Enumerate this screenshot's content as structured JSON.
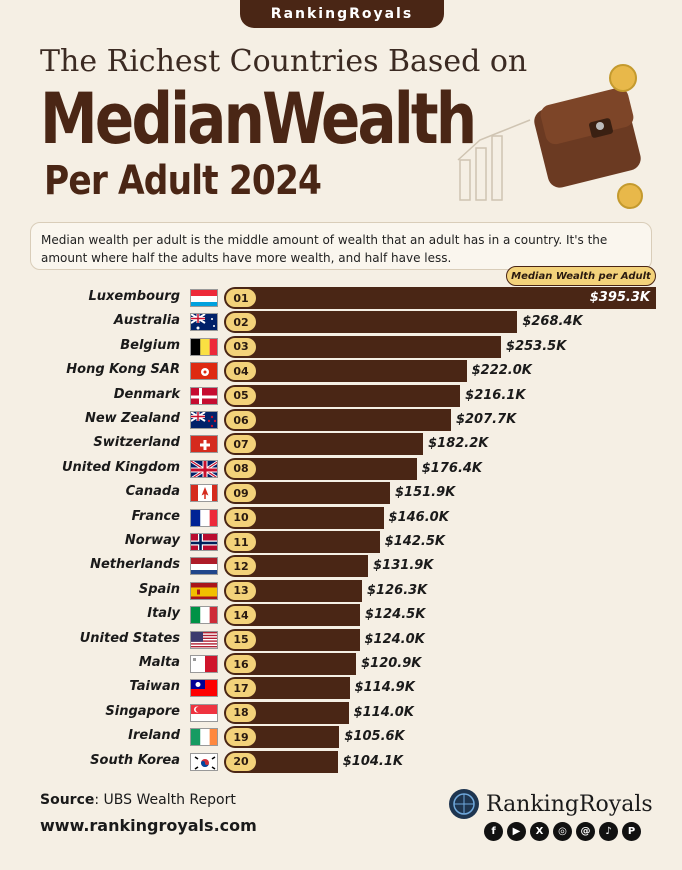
{
  "brand_tab": "RankingRoyals",
  "title_line1": "The Richest Countries Based on",
  "title_line2": "MedianWealth",
  "title_line3": "Per Adult 2024",
  "description": "Median wealth per adult is the middle amount of wealth that an adult has in a country. It's the amount where half the adults have more wealth, and half have less.",
  "legend_label": "Median Wealth per Adult",
  "chart_data": {
    "type": "bar",
    "orientation": "horizontal",
    "title": "The Richest Countries Based on MedianWealth Per Adult 2024",
    "series_name": "Median Wealth per Adult",
    "categories": [
      "Luxembourg",
      "Australia",
      "Belgium",
      "Hong Kong SAR",
      "Denmark",
      "New Zealand",
      "Switzerland",
      "United Kingdom",
      "Canada",
      "France",
      "Norway",
      "Netherlands",
      "Spain",
      "Italy",
      "United States",
      "Malta",
      "Taiwan",
      "Singapore",
      "Ireland",
      "South Korea"
    ],
    "ranks": [
      "01",
      "02",
      "03",
      "04",
      "05",
      "06",
      "07",
      "08",
      "09",
      "10",
      "11",
      "12",
      "13",
      "14",
      "15",
      "16",
      "17",
      "18",
      "19",
      "20"
    ],
    "values": [
      395.3,
      268.4,
      253.5,
      222.0,
      216.1,
      207.7,
      182.2,
      176.4,
      151.9,
      146.0,
      142.5,
      131.9,
      126.3,
      124.5,
      124.0,
      120.9,
      114.9,
      114.0,
      105.6,
      104.1
    ],
    "value_labels": [
      "$395.3K",
      "$268.4K",
      "$253.5K",
      "$222.0K",
      "$216.1K",
      "$207.7K",
      "$182.2K",
      "$176.4K",
      "$151.9K",
      "$146.0K",
      "$142.5K",
      "$131.9K",
      "$126.3K",
      "$124.5K",
      "$124.0K",
      "$120.9K",
      "$114.9K",
      "$114.0K",
      "$105.6K",
      "$104.1K"
    ],
    "flags": [
      "luxembourg-flag",
      "australia-flag",
      "belgium-flag",
      "hong-kong-flag",
      "denmark-flag",
      "new-zealand-flag",
      "switzerland-flag",
      "united-kingdom-flag",
      "canada-flag",
      "france-flag",
      "norway-flag",
      "netherlands-flag",
      "spain-flag",
      "italy-flag",
      "united-states-flag",
      "malta-flag",
      "taiwan-flag",
      "singapore-flag",
      "ireland-flag",
      "south-korea-flag"
    ],
    "bar_color": "#4a2615",
    "rank_badge_color": "#f3d27a"
  },
  "footer": {
    "source_label": "Source",
    "source_text": ": UBS Wealth Report",
    "website": "www.rankingroyals.com",
    "logo_name": "RankingRoyals",
    "socials": [
      "facebook-icon",
      "youtube-icon",
      "x-icon",
      "instagram-icon",
      "threads-icon",
      "tiktok-icon",
      "pinterest-icon"
    ]
  },
  "colors": {
    "background": "#f5efe4",
    "brand_brown": "#4a2615",
    "accent_gold": "#f3d27a"
  }
}
